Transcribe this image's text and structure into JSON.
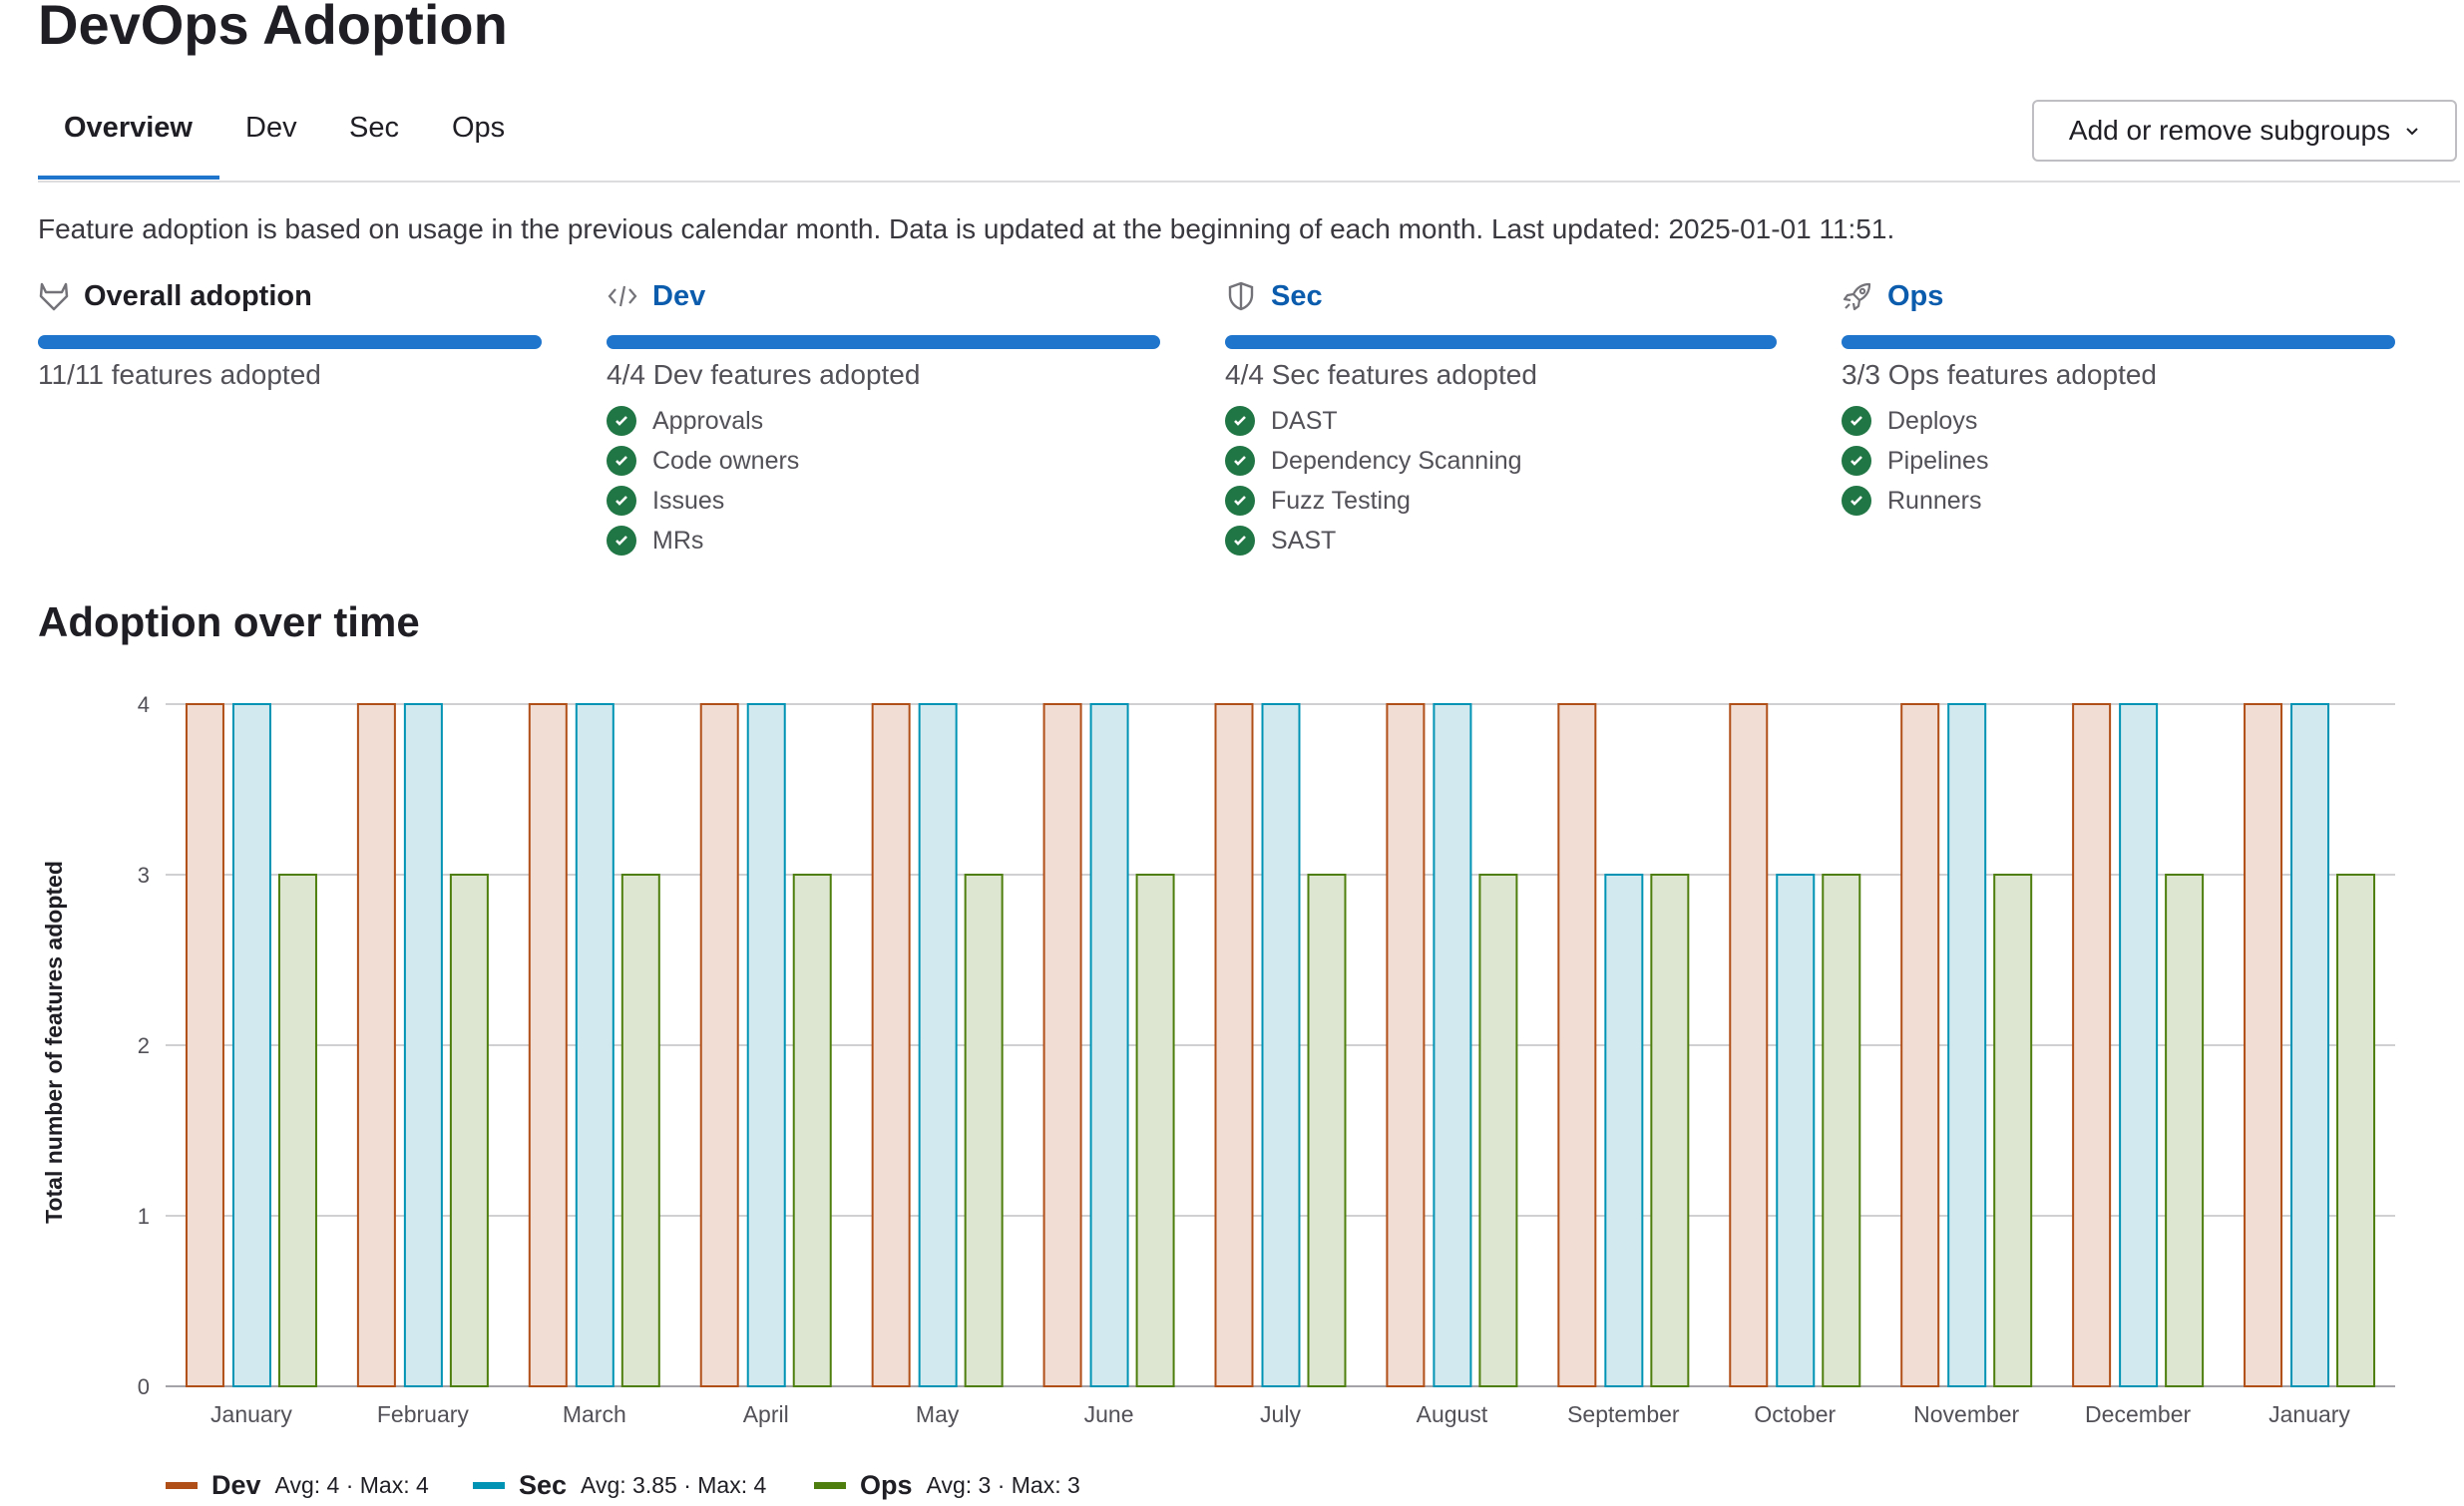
{
  "page_title": "DevOps Adoption",
  "tabs": [
    {
      "label": "Overview",
      "active": true
    },
    {
      "label": "Dev",
      "active": false
    },
    {
      "label": "Sec",
      "active": false
    },
    {
      "label": "Ops",
      "active": false
    }
  ],
  "subgroups_button": {
    "label": "Add or remove subgroups",
    "icon": "chevron-down-icon"
  },
  "description": "Feature adoption is based on usage in the previous calendar month. Data is updated at the beginning of each month. Last updated: 2025-01-01 11:51.",
  "columns": [
    {
      "title": "Overall adoption",
      "icon": "tanuki-icon",
      "progress": 1.0,
      "count": "11/11 features adopted",
      "items": []
    },
    {
      "title": "Dev",
      "icon": "code-icon",
      "progress": 1.0,
      "count": "4/4 Dev features adopted",
      "items": [
        "Approvals",
        "Code owners",
        "Issues",
        "MRs"
      ]
    },
    {
      "title": "Sec",
      "icon": "shield-icon",
      "progress": 1.0,
      "count": "4/4 Sec features adopted",
      "items": [
        "DAST",
        "Dependency Scanning",
        "Fuzz Testing",
        "SAST"
      ]
    },
    {
      "title": "Ops",
      "icon": "rocket-icon",
      "progress": 1.0,
      "count": "3/3 Ops features adopted",
      "items": [
        "Deploys",
        "Pipelines",
        "Runners"
      ]
    }
  ],
  "colors": {
    "progress": "#1f75cb",
    "check": "#217645",
    "link": "#0b5cad"
  },
  "chart_section_title": "Adoption over time",
  "chart_data": {
    "type": "bar",
    "ylabel": "Total number of features adopted",
    "xlabel": "",
    "ylim": [
      0,
      4
    ],
    "yticks": [
      0,
      1,
      2,
      3,
      4
    ],
    "grid": true,
    "legend_placement": "bottom-left",
    "categories": [
      "January",
      "February",
      "March",
      "April",
      "May",
      "June",
      "July",
      "August",
      "September",
      "October",
      "November",
      "December",
      "January"
    ],
    "series": [
      {
        "name": "Dev",
        "color": "#b14f18",
        "fill": "#f1ddd3",
        "values": [
          4,
          4,
          4,
          4,
          4,
          4,
          4,
          4,
          4,
          4,
          4,
          4,
          4
        ],
        "summary": "Avg: 4 · Max: 4"
      },
      {
        "name": "Sec",
        "color": "#0093b4",
        "fill": "#d3e9f0",
        "values": [
          4,
          4,
          4,
          4,
          4,
          4,
          4,
          4,
          3,
          3,
          4,
          4,
          4
        ],
        "summary": "Avg: 3.85 · Max: 4"
      },
      {
        "name": "Ops",
        "color": "#4e7f0e",
        "fill": "#dde6d0",
        "values": [
          3,
          3,
          3,
          3,
          3,
          3,
          3,
          3,
          3,
          3,
          3,
          3,
          3
        ],
        "summary": "Avg: 3 · Max: 3"
      }
    ]
  }
}
